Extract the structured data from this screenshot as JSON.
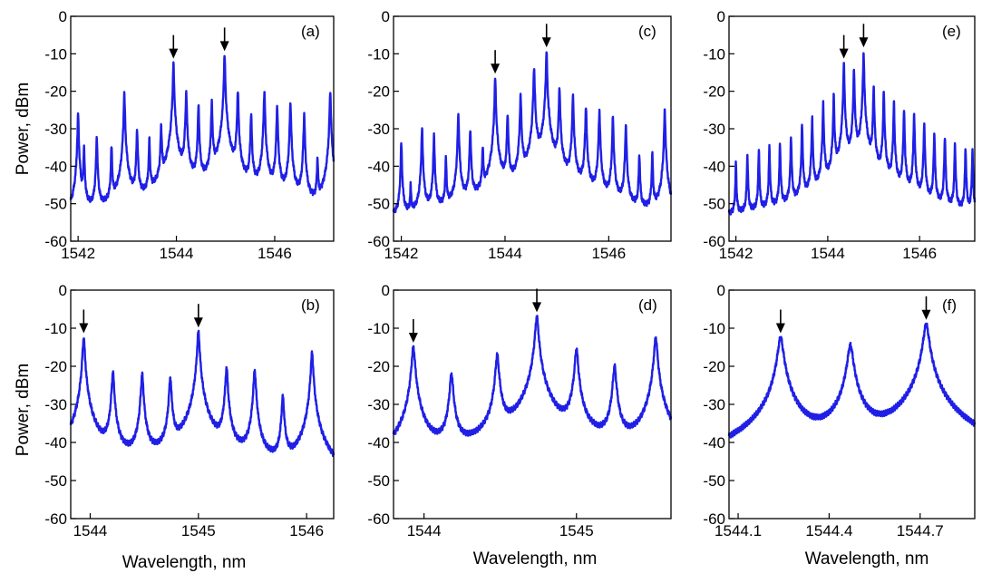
{
  "ylabel": "Power, dBm",
  "xlabel": "Wavelength, nm",
  "colors": {
    "trace": "#1f1fe6",
    "axis": "#000000",
    "arrow": "#000000"
  },
  "chart_data": [
    {
      "type": "line",
      "panel": "(a)",
      "xlim": [
        1541.85,
        1547.2
      ],
      "ylim": [
        -60,
        0
      ],
      "xticks": [
        1542,
        1544,
        1546
      ],
      "yticks": [
        0,
        -10,
        -20,
        -30,
        -40,
        -50,
        -60
      ],
      "baseline": -56.5,
      "peaks": {
        "x": [
          1542.0,
          1542.12,
          1542.38,
          1542.68,
          1542.94,
          1543.2,
          1543.45,
          1543.69,
          1543.94,
          1544.2,
          1544.45,
          1544.72,
          1544.98,
          1545.25,
          1545.52,
          1545.79,
          1546.05,
          1546.32,
          1546.6,
          1546.87,
          1547.13
        ],
        "y": [
          -26,
          -35,
          -32,
          -35,
          -20.5,
          -30,
          -33,
          -29,
          -12.5,
          -20,
          -24,
          -23,
          -10.5,
          -20,
          -26,
          -20,
          -24,
          -23,
          -26,
          -38,
          -20
        ]
      },
      "arrows_at": [
        1543.94,
        1544.98
      ]
    },
    {
      "type": "line",
      "panel": "(c)",
      "xlim": [
        1541.85,
        1547.2
      ],
      "ylim": [
        -60,
        0
      ],
      "xticks": [
        1542,
        1544,
        1546
      ],
      "yticks": [
        0,
        -10,
        -20,
        -30,
        -40,
        -50,
        -60
      ],
      "baseline": -55.5,
      "peaks": {
        "x": [
          1542.0,
          1542.18,
          1542.4,
          1542.63,
          1542.86,
          1543.1,
          1543.33,
          1543.57,
          1543.81,
          1544.05,
          1544.3,
          1544.56,
          1544.8,
          1545.05,
          1545.31,
          1545.56,
          1545.82,
          1546.08,
          1546.33,
          1546.59,
          1546.84,
          1547.08
        ],
        "y": [
          -34,
          -46,
          -30,
          -32,
          -38,
          -26,
          -30,
          -35,
          -16.5,
          -26,
          -21,
          -13.5,
          -9.5,
          -19,
          -21,
          -24,
          -25,
          -27,
          -29,
          -37,
          -37,
          -25
        ]
      },
      "arrows_at": [
        1543.81,
        1544.8
      ]
    },
    {
      "type": "line",
      "panel": "(e)",
      "xlim": [
        1541.85,
        1547.2
      ],
      "ylim": [
        -60,
        0
      ],
      "xticks": [
        1542,
        1544,
        1546
      ],
      "yticks": [
        0,
        -10,
        -20,
        -30,
        -40,
        -50,
        -60
      ],
      "baseline": -54.5,
      "peaks": {
        "x": [
          1542.0,
          1542.25,
          1542.5,
          1542.73,
          1542.96,
          1543.2,
          1543.44,
          1543.66,
          1543.9,
          1544.13,
          1544.35,
          1544.57,
          1544.78,
          1545.0,
          1545.22,
          1545.44,
          1545.66,
          1545.88,
          1546.1,
          1546.32,
          1546.55,
          1546.77,
          1547.0,
          1547.15
        ],
        "y": [
          -39,
          -37,
          -36,
          -35,
          -34,
          -32,
          -29,
          -27,
          -23,
          -21,
          -12.5,
          -14,
          -9.5,
          -18.5,
          -20,
          -23,
          -25,
          -26,
          -28,
          -31,
          -32,
          -34,
          -35,
          -36
        ]
      },
      "arrows_at": [
        1544.35,
        1544.78
      ]
    },
    {
      "type": "line",
      "panel": "(b)",
      "xlim": [
        1543.82,
        1546.25
      ],
      "ylim": [
        -60,
        0
      ],
      "xticks": [
        1544,
        1545,
        1546
      ],
      "yticks": [
        0,
        -10,
        -20,
        -30,
        -40,
        -50,
        -60
      ],
      "baseline": -56,
      "peaks": {
        "x": [
          1543.94,
          1544.21,
          1544.48,
          1544.74,
          1545.0,
          1545.26,
          1545.52,
          1545.78,
          1546.05
        ],
        "y": [
          -12.5,
          -21.5,
          -22,
          -23,
          -11,
          -20.5,
          -21,
          -28,
          -16.5
        ]
      },
      "arrows_at": [
        1543.94,
        1545.0
      ]
    },
    {
      "type": "line",
      "panel": "(d)",
      "xlim": [
        1543.8,
        1545.62
      ],
      "ylim": [
        -60,
        0
      ],
      "xticks": [
        1544,
        1545
      ],
      "yticks": [
        0,
        -10,
        -20,
        -30,
        -40,
        -50,
        -60
      ],
      "baseline": -54,
      "peaks": {
        "x": [
          1543.93,
          1544.18,
          1544.48,
          1544.74,
          1545.0,
          1545.25,
          1545.52
        ],
        "y": [
          -15,
          -22,
          -17,
          -7,
          -15.5,
          -20,
          -12.5
        ]
      },
      "arrows_at": [
        1543.93,
        1544.74
      ]
    },
    {
      "type": "line",
      "panel": "(f)",
      "xlim": [
        1544.07,
        1544.88
      ],
      "ylim": [
        -60,
        0
      ],
      "xticks": [
        1544.1,
        1544.4,
        1544.7
      ],
      "yticks": [
        0,
        -10,
        -20,
        -30,
        -40,
        -50,
        -60
      ],
      "baseline": -55,
      "peaks": {
        "x": [
          1544.24,
          1544.47,
          1544.72
        ],
        "y": [
          -12.5,
          -14.5,
          -9
        ]
      },
      "arrows_at": [
        1544.24,
        1544.72
      ]
    }
  ]
}
